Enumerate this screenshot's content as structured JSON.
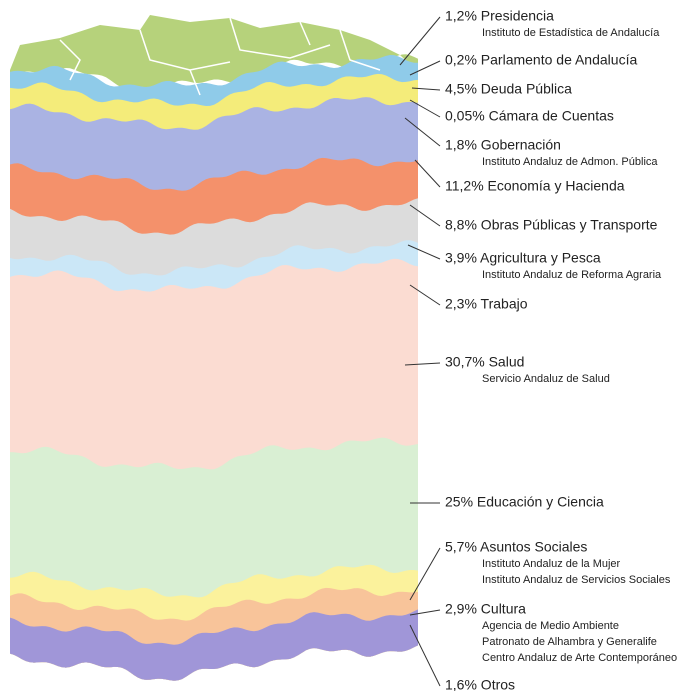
{
  "layers": [
    {
      "label": "1,2% Presidencia",
      "subs": [
        "Instituto de Estadística de Andalucía"
      ]
    },
    {
      "label": "0,2% Parlamento de Andalucía"
    },
    {
      "label": "4,5% Deuda Pública"
    },
    {
      "label": "0,05% Cámara de Cuentas"
    },
    {
      "label": "1,8% Gobernación",
      "subs": [
        "Instituto Andaluz de Admon. Pública"
      ]
    },
    {
      "label": "11,2% Economía y Hacienda"
    },
    {
      "label": "8,8% Obras Públicas y Transporte"
    },
    {
      "label": "3,9%  Agricultura y Pesca",
      "subs": [
        "Instituto Andaluz de Reforma Agraria"
      ]
    },
    {
      "label": "2,3% Trabajo"
    },
    {
      "label": "30,7% Salud",
      "subs": [
        "Servicio Andaluz de Salud"
      ]
    },
    {
      "label": "25% Educación y Ciencia"
    },
    {
      "label": "5,7% Asuntos Sociales",
      "subs": [
        "Instituto Andaluz de la Mujer",
        "Instituto Andaluz de Servicios Sociales"
      ]
    },
    {
      "label": "2,9% Cultura",
      "subs": [
        "Agencia de Medio Ambiente",
        "Patronato de Alhambra y Generalife",
        "Centro Andaluz de Arte Contemporáneo"
      ]
    },
    {
      "label": "1,6% Otros"
    }
  ]
}
